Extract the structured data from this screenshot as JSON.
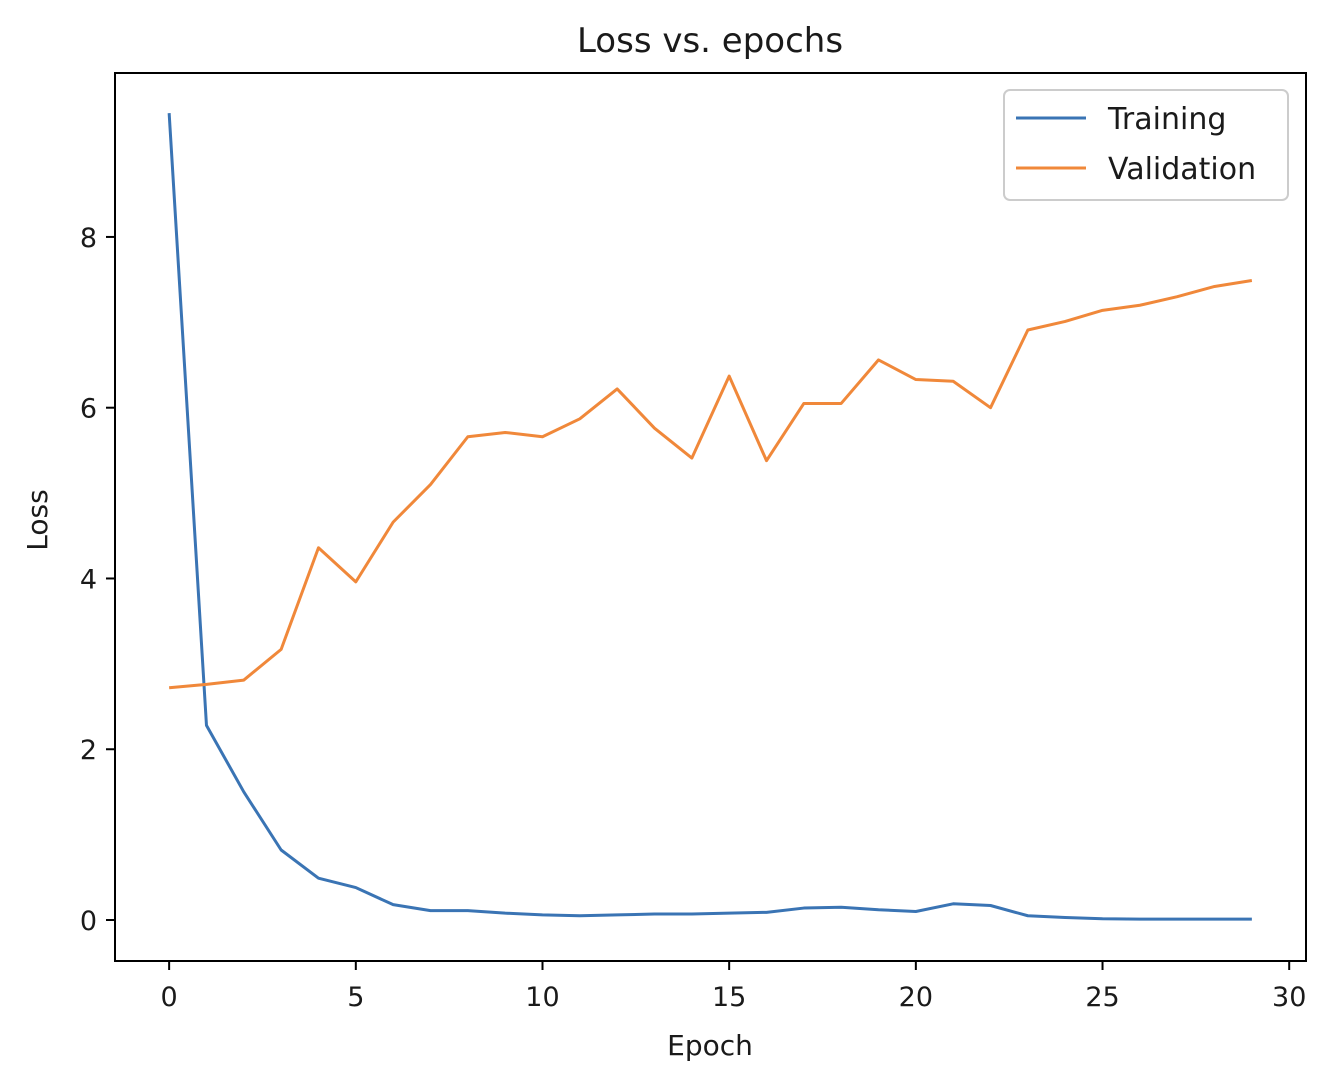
{
  "chart_data": {
    "type": "line",
    "title": "Loss vs. epochs",
    "xlabel": "Epoch",
    "ylabel": "Loss",
    "xlim": [
      -1.45,
      30.45
    ],
    "ylim": [
      -0.48,
      9.92
    ],
    "xticks": [
      0,
      5,
      10,
      15,
      20,
      25,
      30
    ],
    "yticks": [
      0,
      2,
      4,
      6,
      8
    ],
    "grid": false,
    "legend_position": "top-right",
    "x": [
      0,
      1,
      2,
      3,
      4,
      5,
      6,
      7,
      8,
      9,
      10,
      11,
      12,
      13,
      14,
      15,
      16,
      17,
      18,
      19,
      20,
      21,
      22,
      23,
      24,
      25,
      26,
      27,
      28,
      29
    ],
    "series": [
      {
        "name": "Training",
        "color": "#3a74b4",
        "values": [
          9.45,
          2.28,
          1.5,
          0.82,
          0.49,
          0.38,
          0.18,
          0.11,
          0.11,
          0.08,
          0.06,
          0.05,
          0.06,
          0.07,
          0.07,
          0.08,
          0.09,
          0.14,
          0.15,
          0.12,
          0.1,
          0.19,
          0.17,
          0.05,
          0.03,
          0.015,
          0.01,
          0.01,
          0.01,
          0.01
        ]
      },
      {
        "name": "Validation",
        "color": "#f0883a",
        "values": [
          2.72,
          2.76,
          2.81,
          3.17,
          4.36,
          3.96,
          4.66,
          5.1,
          5.66,
          5.71,
          5.66,
          5.87,
          6.22,
          5.76,
          5.41,
          6.37,
          5.38,
          6.05,
          6.05,
          6.56,
          6.33,
          6.31,
          6.0,
          6.91,
          7.01,
          7.14,
          7.2,
          7.3,
          7.42,
          7.49
        ]
      }
    ]
  }
}
